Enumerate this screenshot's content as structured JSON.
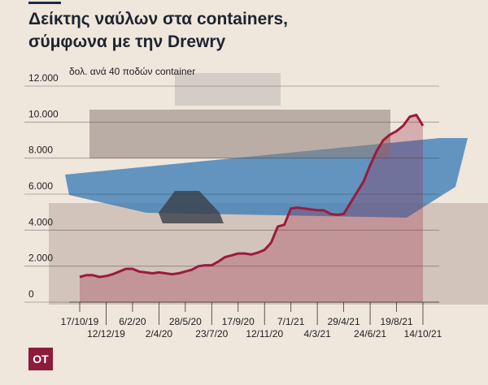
{
  "chart_data": {
    "type": "area",
    "title": [
      "Δείκτης ναύλων στα containers,",
      "σύμφωνα με την Drewry"
    ],
    "y_label": "δολ. ανά 40 ποδών container",
    "categories": [
      "17/10/19",
      null,
      null,
      null,
      "12/12/19",
      null,
      null,
      null,
      "6/2/20",
      null,
      null,
      null,
      "2/4/20",
      null,
      null,
      null,
      "28/5/20",
      null,
      null,
      null,
      "23/7/20",
      null,
      null,
      null,
      "17/9/20",
      null,
      null,
      null,
      "12/11/20",
      null,
      null,
      null,
      "7/1/21",
      null,
      null,
      null,
      "4/3/21",
      null,
      null,
      null,
      "29/4/21",
      null,
      null,
      null,
      "24/6/21",
      null,
      null,
      null,
      "19/8/21",
      null,
      null,
      null,
      "14/10/21"
    ],
    "values": [
      1400,
      1500,
      1500,
      1400,
      1450,
      1550,
      1700,
      1850,
      1850,
      1700,
      1650,
      1600,
      1650,
      1600,
      1550,
      1600,
      1700,
      1800,
      2000,
      2050,
      2050,
      2250,
      2500,
      2600,
      2700,
      2700,
      2650,
      2750,
      2900,
      3300,
      4200,
      4300,
      5200,
      5250,
      5200,
      5150,
      5100,
      5100,
      4900,
      4850,
      4900,
      5500,
      6100,
      6700,
      7600,
      8400,
      9000,
      9300,
      9500,
      9800,
      10300,
      10400,
      9800
    ],
    "color": "#9b1b3d",
    "ylim": [
      0,
      12000
    ],
    "yticks": [
      0,
      {
        "value": 2000,
        "label": "2.000"
      },
      {
        "value": 4000,
        "label": "4.000"
      },
      {
        "value": 6000,
        "label": "6.000"
      },
      {
        "value": 8000,
        "label": "8.000"
      },
      {
        "value": 10000,
        "label": "10.000"
      },
      {
        "value": 12000,
        "label": "12.000"
      }
    ],
    "grid": true
  },
  "logo": "OT"
}
